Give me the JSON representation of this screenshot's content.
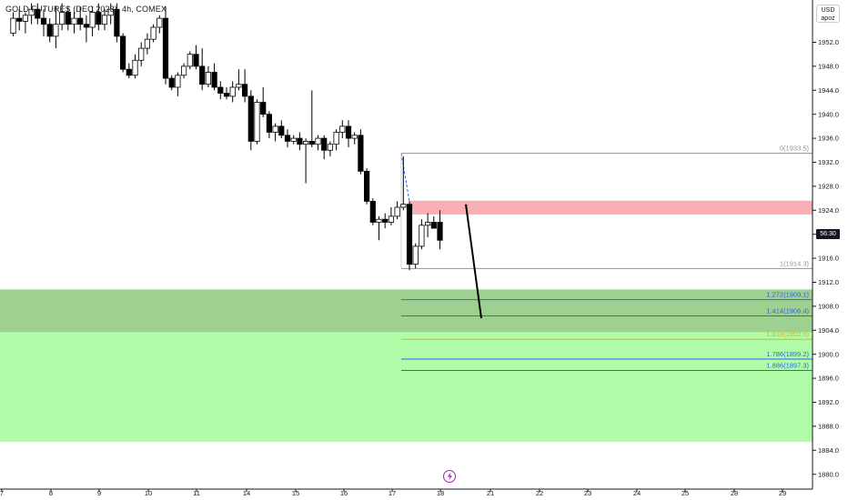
{
  "chart_data": {
    "type": "candlestick",
    "title": "GOLD FUTURES (DEC 2023), 4h, COMEX",
    "currency": "USD",
    "currency_sub": "apoz",
    "countdown": "56:30",
    "y_ticks": [
      1952,
      1948,
      1944,
      1940,
      1936,
      1932,
      1928,
      1924,
      1920,
      1916,
      1912,
      1908,
      1904,
      1900,
      1896,
      1892,
      1888,
      1884,
      1880
    ],
    "y_tick_labels": [
      "1952.0",
      "1948.0",
      "1944.0",
      "1940.0",
      "1936.0",
      "1932.0",
      "1928.0",
      "1924.0",
      "1920.0",
      "1916.0",
      "1912.0",
      "1908.0",
      "1904.0",
      "1900.0",
      "1896.0",
      "1892.0",
      "1888.0",
      "1884.0",
      "1880.0"
    ],
    "ylim": [
      1877,
      1958
    ],
    "x_ticks": [
      "7",
      "8",
      "9",
      "10",
      "11",
      "14",
      "15",
      "16",
      "17",
      "18",
      "21",
      "22",
      "23",
      "24",
      "25",
      "28",
      "29"
    ],
    "bar_spacing": 6.7,
    "candles": [
      {
        "o": 1953.5,
        "h": 1957.0,
        "l": 1953.0,
        "c": 1956.0
      },
      {
        "o": 1956.0,
        "h": 1957.5,
        "l": 1954.0,
        "c": 1955.5
      },
      {
        "o": 1955.5,
        "h": 1957.0,
        "l": 1953.5,
        "c": 1956.5
      },
      {
        "o": 1956.5,
        "h": 1958.5,
        "l": 1955.0,
        "c": 1957.5
      },
      {
        "o": 1957.5,
        "h": 1958.5,
        "l": 1955.0,
        "c": 1956.0
      },
      {
        "o": 1956.0,
        "h": 1957.5,
        "l": 1953.0,
        "c": 1955.0
      },
      {
        "o": 1955.0,
        "h": 1956.0,
        "l": 1952.0,
        "c": 1953.0
      },
      {
        "o": 1953.0,
        "h": 1958.0,
        "l": 1951.0,
        "c": 1955.0
      },
      {
        "o": 1955.0,
        "h": 1958.5,
        "l": 1954.0,
        "c": 1957.0
      },
      {
        "o": 1957.0,
        "h": 1958.0,
        "l": 1954.0,
        "c": 1955.0
      },
      {
        "o": 1955.0,
        "h": 1957.0,
        "l": 1953.5,
        "c": 1956.0
      },
      {
        "o": 1956.0,
        "h": 1958.0,
        "l": 1954.0,
        "c": 1955.0
      },
      {
        "o": 1955.0,
        "h": 1956.5,
        "l": 1952.0,
        "c": 1954.5
      },
      {
        "o": 1954.5,
        "h": 1958.0,
        "l": 1953.0,
        "c": 1957.0
      },
      {
        "o": 1957.0,
        "h": 1958.5,
        "l": 1954.0,
        "c": 1955.0
      },
      {
        "o": 1955.0,
        "h": 1957.5,
        "l": 1954.0,
        "c": 1956.5
      },
      {
        "o": 1956.5,
        "h": 1958.5,
        "l": 1955.0,
        "c": 1957.5
      },
      {
        "o": 1957.5,
        "h": 1958.5,
        "l": 1952.0,
        "c": 1953.0
      },
      {
        "o": 1953.0,
        "h": 1953.5,
        "l": 1947.0,
        "c": 1947.5
      },
      {
        "o": 1947.5,
        "h": 1948.5,
        "l": 1946.0,
        "c": 1946.5
      },
      {
        "o": 1946.5,
        "h": 1950.0,
        "l": 1946.0,
        "c": 1949.0
      },
      {
        "o": 1949.0,
        "h": 1952.0,
        "l": 1948.0,
        "c": 1951.0
      },
      {
        "o": 1951.0,
        "h": 1953.5,
        "l": 1950.0,
        "c": 1952.5
      },
      {
        "o": 1952.5,
        "h": 1955.0,
        "l": 1952.0,
        "c": 1954.5
      },
      {
        "o": 1954.5,
        "h": 1956.5,
        "l": 1953.5,
        "c": 1956.0
      },
      {
        "o": 1956.0,
        "h": 1958.0,
        "l": 1945.0,
        "c": 1946.0
      },
      {
        "o": 1946.0,
        "h": 1946.5,
        "l": 1944.0,
        "c": 1944.5
      },
      {
        "o": 1944.5,
        "h": 1947.0,
        "l": 1943.0,
        "c": 1946.5
      },
      {
        "o": 1946.5,
        "h": 1948.5,
        "l": 1946.0,
        "c": 1948.0
      },
      {
        "o": 1948.0,
        "h": 1950.5,
        "l": 1947.5,
        "c": 1950.0
      },
      {
        "o": 1950.0,
        "h": 1951.5,
        "l": 1947.5,
        "c": 1948.0
      },
      {
        "o": 1948.0,
        "h": 1951.0,
        "l": 1944.0,
        "c": 1945.0
      },
      {
        "o": 1945.0,
        "h": 1948.0,
        "l": 1944.5,
        "c": 1947.0
      },
      {
        "o": 1947.0,
        "h": 1948.5,
        "l": 1944.0,
        "c": 1944.5
      },
      {
        "o": 1944.5,
        "h": 1945.5,
        "l": 1942.5,
        "c": 1943.5
      },
      {
        "o": 1943.5,
        "h": 1944.5,
        "l": 1942.5,
        "c": 1943.0
      },
      {
        "o": 1943.0,
        "h": 1945.5,
        "l": 1942.0,
        "c": 1944.5
      },
      {
        "o": 1944.5,
        "h": 1947.5,
        "l": 1944.0,
        "c": 1945.0
      },
      {
        "o": 1945.0,
        "h": 1947.5,
        "l": 1942.0,
        "c": 1943.0
      },
      {
        "o": 1943.0,
        "h": 1944.0,
        "l": 1934.0,
        "c": 1935.5
      },
      {
        "o": 1935.5,
        "h": 1942.5,
        "l": 1935.0,
        "c": 1942.0
      },
      {
        "o": 1942.0,
        "h": 1944.5,
        "l": 1939.5,
        "c": 1940.0
      },
      {
        "o": 1940.0,
        "h": 1940.5,
        "l": 1936.0,
        "c": 1937.0
      },
      {
        "o": 1937.0,
        "h": 1938.5,
        "l": 1935.5,
        "c": 1938.0
      },
      {
        "o": 1938.0,
        "h": 1939.0,
        "l": 1936.0,
        "c": 1936.5
      },
      {
        "o": 1936.5,
        "h": 1937.5,
        "l": 1934.5,
        "c": 1935.5
      },
      {
        "o": 1935.5,
        "h": 1936.5,
        "l": 1935.0,
        "c": 1936.0
      },
      {
        "o": 1936.0,
        "h": 1937.0,
        "l": 1934.0,
        "c": 1935.0
      },
      {
        "o": 1935.0,
        "h": 1936.0,
        "l": 1928.5,
        "c": 1935.5
      },
      {
        "o": 1935.5,
        "h": 1944.0,
        "l": 1934.5,
        "c": 1935.0
      },
      {
        "o": 1935.0,
        "h": 1936.5,
        "l": 1934.0,
        "c": 1936.0
      },
      {
        "o": 1936.0,
        "h": 1936.5,
        "l": 1932.5,
        "c": 1934.0
      },
      {
        "o": 1934.0,
        "h": 1935.5,
        "l": 1933.0,
        "c": 1935.0
      },
      {
        "o": 1935.0,
        "h": 1937.5,
        "l": 1934.0,
        "c": 1937.0
      },
      {
        "o": 1937.0,
        "h": 1939.0,
        "l": 1936.0,
        "c": 1938.0
      },
      {
        "o": 1938.0,
        "h": 1939.0,
        "l": 1934.5,
        "c": 1936.0
      },
      {
        "o": 1936.0,
        "h": 1937.0,
        "l": 1935.0,
        "c": 1936.5
      },
      {
        "o": 1936.5,
        "h": 1937.5,
        "l": 1930.0,
        "c": 1930.5
      },
      {
        "o": 1930.5,
        "h": 1931.0,
        "l": 1925.0,
        "c": 1925.5
      },
      {
        "o": 1925.5,
        "h": 1926.0,
        "l": 1921.5,
        "c": 1922.0
      },
      {
        "o": 1922.0,
        "h": 1923.0,
        "l": 1919.0,
        "c": 1922.5
      },
      {
        "o": 1922.5,
        "h": 1923.5,
        "l": 1921.0,
        "c": 1922.0
      },
      {
        "o": 1922.0,
        "h": 1924.5,
        "l": 1921.5,
        "c": 1923.0
      },
      {
        "o": 1923.0,
        "h": 1925.5,
        "l": 1922.5,
        "c": 1924.5
      },
      {
        "o": 1924.5,
        "h": 1933.0,
        "l": 1924.0,
        "c": 1925.0
      },
      {
        "o": 1925.0,
        "h": 1925.5,
        "l": 1914.0,
        "c": 1915.0
      },
      {
        "o": 1915.0,
        "h": 1918.5,
        "l": 1914.3,
        "c": 1918.0
      },
      {
        "o": 1918.0,
        "h": 1922.5,
        "l": 1917.5,
        "c": 1921.5
      },
      {
        "o": 1921.5,
        "h": 1923.5,
        "l": 1919.5,
        "c": 1922.0
      },
      {
        "o": 1922.0,
        "h": 1923.0,
        "l": 1921.5,
        "c": 1921.0
      },
      {
        "o": 1922.0,
        "h": 1924.0,
        "l": 1917.5,
        "c": 1919.0
      }
    ],
    "zones": [
      {
        "name": "",
        "top": 1910.8,
        "bottom": 1885.4,
        "color": "#b0fca9"
      },
      {
        "name": "",
        "top": 1910.8,
        "bottom": 1903.7,
        "color": "#9ed18f"
      },
      {
        "name": "",
        "top": 1925.6,
        "bottom": 1923.3,
        "color": "#f8aeb2"
      }
    ],
    "fib_levels": [
      {
        "label": "0(1933.5)",
        "value": 1933.5,
        "color": "#8f929a"
      },
      {
        "label": "1(1914.3)",
        "value": 1914.3,
        "color": "#8f929a"
      },
      {
        "label": "1.272(1909.1)",
        "value": 1909.1,
        "color": "#2962ff"
      },
      {
        "label": "1.414(1906.4)",
        "value": 1906.4,
        "color": "#2962ff"
      },
      {
        "label": "1.618(1902.5)",
        "value": 1902.5,
        "color": "#f2a900"
      },
      {
        "label": "1.786(1899.2)",
        "value": 1899.2,
        "color": "#2962ff"
      },
      {
        "label": "1.886(1897.3)",
        "value": 1897.3,
        "color": "#2962ff"
      }
    ],
    "fib_anchor": {
      "high": 1933.5,
      "low": 1914.3
    },
    "projection": {
      "from": 1925.0,
      "to": 1906.0
    },
    "colors": {
      "up_body": "#ffffff",
      "down_body": "#000000",
      "wick": "#000000",
      "axis_text": "#131722",
      "grid": "#e0e3eb"
    }
  }
}
